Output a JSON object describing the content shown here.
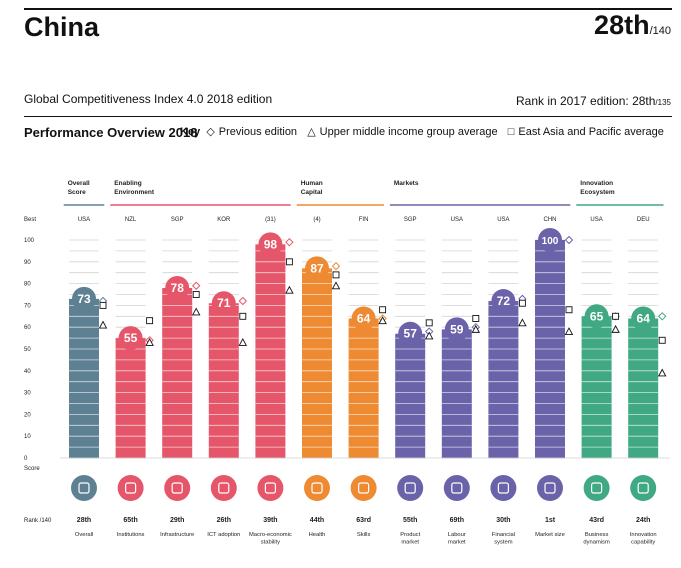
{
  "header": {
    "country": "China",
    "rank": "28th",
    "rank_of": "/140",
    "edition": "Global Competitiveness Index 4.0 2018 edition",
    "prev_rank_label": "Rank in 2017 edition: 28th",
    "prev_rank_of": "/135"
  },
  "performance": {
    "title": "Performance Overview 2018",
    "key_label": "Key",
    "key_items": [
      {
        "symbol": "◇",
        "label": "Previous edition"
      },
      {
        "symbol": "△",
        "label": "Upper middle income group average"
      },
      {
        "symbol": "□",
        "label": "East Asia and Pacific average"
      }
    ]
  },
  "colors": {
    "Overall Score": "#5d8193",
    "Enabling Environment": "#e6566a",
    "Human Capital": "#ee8a32",
    "Markets": "#6b63a9",
    "Innovation Ecosystem": "#40a883"
  },
  "chart_data": {
    "type": "bar",
    "ylim": [
      0,
      100
    ],
    "yticks": [
      0,
      10,
      20,
      30,
      40,
      50,
      60,
      70,
      80,
      90,
      100
    ],
    "best_label": "Best",
    "score_label": "Score",
    "rank_label": "Rank /140",
    "groups": [
      {
        "name": "Overall Score",
        "pillars": 1
      },
      {
        "name": "Enabling Environment",
        "pillars": 4
      },
      {
        "name": "Human Capital",
        "pillars": 2
      },
      {
        "name": "Markets",
        "pillars": 4
      },
      {
        "name": "Innovation Ecosystem",
        "pillars": 2
      }
    ],
    "pillars": [
      {
        "name": "Overall",
        "group": "Overall Score",
        "score": 73,
        "best": "USA",
        "rank": "28th",
        "prev": 72,
        "upper_mid": 61,
        "east_asia": 70,
        "icon": "overall-icon"
      },
      {
        "name": "Institutions",
        "group": "Enabling Environment",
        "score": 55,
        "best": "NZL",
        "rank": "65th",
        "prev": 54,
        "upper_mid": 53,
        "east_asia": 63,
        "icon": "institutions-icon"
      },
      {
        "name": "Infrastructure",
        "group": "Enabling Environment",
        "score": 78,
        "best": "SGP",
        "rank": "29th",
        "prev": 79,
        "upper_mid": 67,
        "east_asia": 75,
        "icon": "infrastructure-icon"
      },
      {
        "name": "ICT adoption",
        "group": "Enabling Environment",
        "score": 71,
        "best": "KOR",
        "rank": "26th",
        "prev": 72,
        "upper_mid": 53,
        "east_asia": 65,
        "icon": "ict-icon"
      },
      {
        "name": "Macro-economic stability",
        "group": "Enabling Environment",
        "score": 98,
        "best": "(31)",
        "rank": "39th",
        "prev": 99,
        "upper_mid": 77,
        "east_asia": 90,
        "icon": "macro-icon"
      },
      {
        "name": "Health",
        "group": "Human Capital",
        "score": 87,
        "best": "(4)",
        "rank": "44th",
        "prev": 88,
        "upper_mid": 79,
        "east_asia": 84,
        "icon": "health-icon"
      },
      {
        "name": "Skills",
        "group": "Human Capital",
        "score": 64,
        "best": "FIN",
        "rank": "63rd",
        "prev": 64,
        "upper_mid": 63,
        "east_asia": 68,
        "icon": "skills-icon"
      },
      {
        "name": "Product market",
        "group": "Markets",
        "score": 57,
        "best": "SGP",
        "rank": "55th",
        "prev": 58,
        "upper_mid": 56,
        "east_asia": 62,
        "icon": "product-market-icon"
      },
      {
        "name": "Labour market",
        "group": "Markets",
        "score": 59,
        "best": "USA",
        "rank": "69th",
        "prev": 60,
        "upper_mid": 59,
        "east_asia": 64,
        "icon": "labour-market-icon"
      },
      {
        "name": "Financial system",
        "group": "Markets",
        "score": 72,
        "best": "USA",
        "rank": "30th",
        "prev": 73,
        "upper_mid": 62,
        "east_asia": 71,
        "icon": "financial-system-icon"
      },
      {
        "name": "Market size",
        "group": "Markets",
        "score": 100,
        "best": "CHN",
        "rank": "1st",
        "prev": 100,
        "upper_mid": 58,
        "east_asia": 68,
        "icon": "market-size-icon"
      },
      {
        "name": "Business dynamism",
        "group": "Innovation Ecosystem",
        "score": 65,
        "best": "USA",
        "rank": "43rd",
        "prev": 65,
        "upper_mid": 59,
        "east_asia": 65,
        "icon": "business-dynamism-icon"
      },
      {
        "name": "Innovation capability",
        "group": "Innovation Ecosystem",
        "score": 64,
        "best": "DEU",
        "rank": "24th",
        "prev": 65,
        "upper_mid": 39,
        "east_asia": 54,
        "icon": "innovation-capability-icon"
      }
    ]
  }
}
